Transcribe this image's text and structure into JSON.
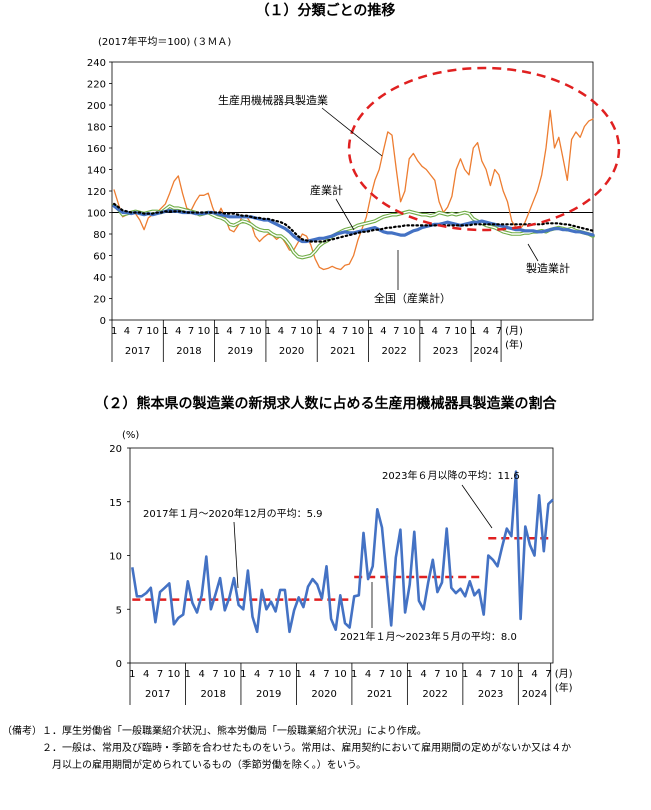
{
  "titles": {
    "chart1": "（１）分類ごとの推移",
    "chart2": "（２）熊本県の製造業の新規求人数に占める生産用機械器具製造業の割合"
  },
  "chart_data": [
    {
      "type": "line",
      "title": "（１）分類ごとの推移",
      "ylabel": "(2017年平均＝100) (３ＭＡ)",
      "ylim": [
        0,
        240
      ],
      "yticks": [
        0,
        20,
        40,
        60,
        80,
        100,
        120,
        140,
        160,
        180,
        200,
        220,
        240
      ],
      "x_month_ticks": [
        "1",
        "4",
        "7",
        "10"
      ],
      "x_tail_ticks": [
        "1",
        "4",
        "7"
      ],
      "years": [
        "2017",
        "2018",
        "2019",
        "2020",
        "2021",
        "2022",
        "2023",
        "2024"
      ],
      "month_unit": "(月)",
      "year_unit": "(年)",
      "reference_line": 100,
      "colors": {
        "seisan": "#ED7D31",
        "sangyo": "#4472C4",
        "seizo": "#70AD47",
        "zenkoku": "#000000",
        "ellipse": "#E02020"
      },
      "annotations": {
        "seisan": "生産用機械器具製造業",
        "sangyo": "産業計",
        "seizo": "製造業計",
        "zenkoku": "全国（産業計）"
      },
      "series": [
        {
          "name": "生産用機械器具製造業",
          "values": [
            121,
            108,
            96,
            98,
            100,
            99,
            93,
            84,
            95,
            98,
            100,
            104,
            108,
            118,
            129,
            134,
            118,
            104,
            102,
            110,
            116,
            116,
            118,
            105,
            95,
            104,
            95,
            84,
            82,
            88,
            97,
            96,
            90,
            78,
            73,
            77,
            80,
            79,
            75,
            78,
            72,
            65,
            65,
            72,
            80,
            78,
            70,
            57,
            49,
            47,
            48,
            50,
            48,
            47,
            51,
            52,
            60,
            74,
            85,
            96,
            115,
            130,
            140,
            158,
            175,
            172,
            140,
            110,
            120,
            150,
            155,
            148,
            143,
            140,
            135,
            130,
            110,
            100,
            105,
            115,
            140,
            150,
            140,
            135,
            160,
            165,
            148,
            140,
            125,
            140,
            135,
            120,
            110,
            92,
            86,
            85,
            90,
            100,
            110,
            120,
            135,
            160,
            195,
            160,
            170,
            150,
            130,
            168,
            175,
            170,
            180,
            185,
            187
          ]
        },
        {
          "name": "製造業計",
          "values": [
            107,
            103,
            98,
            99,
            100,
            101,
            100,
            99,
            100,
            101,
            101,
            100,
            103,
            106,
            104,
            104,
            103,
            102,
            101,
            100,
            98,
            99,
            100,
            98,
            96,
            95,
            93,
            89,
            88,
            90,
            92,
            91,
            89,
            86,
            84,
            83,
            83,
            80,
            78,
            78,
            75,
            70,
            63,
            59,
            58,
            59,
            60,
            64,
            69,
            72,
            74,
            78,
            80,
            82,
            84,
            85,
            86,
            88,
            89,
            90,
            91,
            92,
            94,
            96,
            97,
            98,
            98,
            99,
            100,
            101,
            100,
            99,
            98,
            98,
            97,
            98,
            100,
            99,
            98,
            99,
            98,
            99,
            100,
            99,
            94,
            92,
            90,
            88,
            87,
            86,
            84,
            82,
            81,
            80,
            80,
            80,
            81,
            81,
            82,
            82,
            83,
            82,
            84,
            85,
            86,
            85,
            84,
            85,
            83,
            82,
            81,
            80,
            78
          ]
        },
        {
          "name": "産業計",
          "values": [
            106,
            103,
            100,
            100,
            99,
            100,
            99,
            98,
            99,
            98,
            99,
            100,
            101,
            102,
            101,
            101,
            100,
            100,
            100,
            99,
            99,
            99,
            100,
            100,
            99,
            98,
            97,
            96,
            96,
            96,
            96,
            96,
            96,
            95,
            94,
            93,
            93,
            91,
            89,
            87,
            85,
            82,
            78,
            75,
            73,
            73,
            74,
            75,
            76,
            76,
            77,
            78,
            80,
            81,
            82,
            81,
            81,
            82,
            83,
            84,
            85,
            86,
            84,
            82,
            81,
            81,
            80,
            79,
            79,
            81,
            83,
            84,
            86,
            87,
            88,
            89,
            89,
            90,
            91,
            90,
            89,
            88,
            89,
            90,
            91,
            91,
            92,
            91,
            90,
            89,
            88,
            87,
            86,
            85,
            84,
            84,
            83,
            83,
            83,
            82,
            82,
            83,
            84,
            85,
            85,
            84,
            84,
            83,
            82,
            82,
            81,
            80,
            79
          ]
        },
        {
          "name": "全国（産業計）",
          "values": [
            108,
            105,
            102,
            101,
            100,
            100,
            100,
            99,
            99,
            99,
            100,
            100,
            101,
            101,
            101,
            101,
            101,
            100,
            100,
            100,
            100,
            100,
            100,
            100,
            100,
            100,
            99,
            99,
            99,
            98,
            97,
            97,
            96,
            95,
            95,
            94,
            94,
            93,
            92,
            91,
            89,
            86,
            82,
            78,
            75,
            74,
            73,
            73,
            73,
            73,
            74,
            75,
            76,
            77,
            78,
            79,
            80,
            81,
            82,
            82,
            83,
            84,
            84,
            85,
            86,
            86,
            87,
            87,
            88,
            88,
            88,
            88,
            88,
            88,
            88,
            88,
            88,
            88,
            88,
            88,
            88,
            88,
            88,
            88,
            89,
            89,
            89,
            89,
            89,
            89,
            89,
            89,
            89,
            89,
            89,
            89,
            89,
            89,
            89,
            89,
            89,
            90,
            90,
            90,
            90,
            89,
            89,
            88,
            87,
            86,
            85,
            84,
            83
          ]
        }
      ]
    },
    {
      "type": "line",
      "title": "（２）熊本県の製造業の新規求人数に占める生産用機械器具製造業の割合",
      "ylabel": "(%)",
      "ylim": [
        0,
        20
      ],
      "yticks": [
        0,
        5,
        10,
        15,
        20
      ],
      "x_month_ticks": [
        "1",
        "4",
        "7",
        "10"
      ],
      "x_tail_ticks": [
        "1",
        "4",
        "7"
      ],
      "years": [
        "2017",
        "2018",
        "2019",
        "2020",
        "2021",
        "2022",
        "2023",
        "2024"
      ],
      "month_unit": "(月)",
      "year_unit": "(年)",
      "colors": {
        "line": "#4472C4",
        "avg": "#E02020"
      },
      "averages": [
        {
          "label": "2017年１月～2020年12月の平均：5.9",
          "value": 5.9,
          "from": 0,
          "to": 47
        },
        {
          "label": "2021年１月～2023年５月の平均：8.0",
          "value": 8.0,
          "from": 48,
          "to": 76
        },
        {
          "label": "2023年６月以降の平均：11.6",
          "value": 11.6,
          "from": 77,
          "to": 90
        }
      ],
      "series": [
        {
          "name": "割合",
          "values": [
            8.9,
            6.2,
            6.2,
            6.5,
            7.0,
            3.8,
            6.6,
            7.0,
            7.4,
            3.6,
            4.2,
            4.5,
            7.6,
            5.6,
            4.7,
            6.3,
            9.9,
            5.0,
            6.4,
            7.9,
            4.9,
            6.1,
            7.9,
            5.4,
            5.0,
            8.6,
            4.3,
            2.9,
            6.8,
            5.0,
            5.7,
            4.8,
            6.8,
            6.8,
            2.9,
            4.9,
            6.1,
            5.2,
            7.1,
            7.8,
            7.3,
            6.0,
            9.0,
            4.1,
            3.1,
            6.3,
            3.7,
            3.3,
            6.2,
            6.3,
            12.1,
            7.8,
            9.0,
            14.3,
            12.6,
            8.0,
            3.5,
            9.8,
            12.4,
            4.7,
            7.3,
            12.2,
            5.8,
            5.0,
            7.5,
            9.6,
            6.6,
            7.5,
            12.5,
            7.0,
            6.5,
            6.9,
            6.2,
            7.6,
            6.3,
            6.8,
            4.5,
            10.0,
            9.6,
            9.0,
            10.8,
            12.5,
            11.8,
            17.8,
            4.1,
            12.7,
            11.0,
            10.0,
            15.6,
            10.4,
            14.8,
            15.2
          ]
        }
      ]
    }
  ],
  "notes": {
    "lines": [
      "（備考）１．厚生労働省「一般職業紹介状況」、熊本労働局「一般職業紹介状況」により作成。",
      "　　　　２．一般は、常用及び臨時・季節を合わせたものをいう。常用は、雇用契約において雇用期間の定めがないか又は４か",
      "　　　　　月以上の雇用期間が定められているもの（季節労働を除く。）をいう。"
    ]
  }
}
